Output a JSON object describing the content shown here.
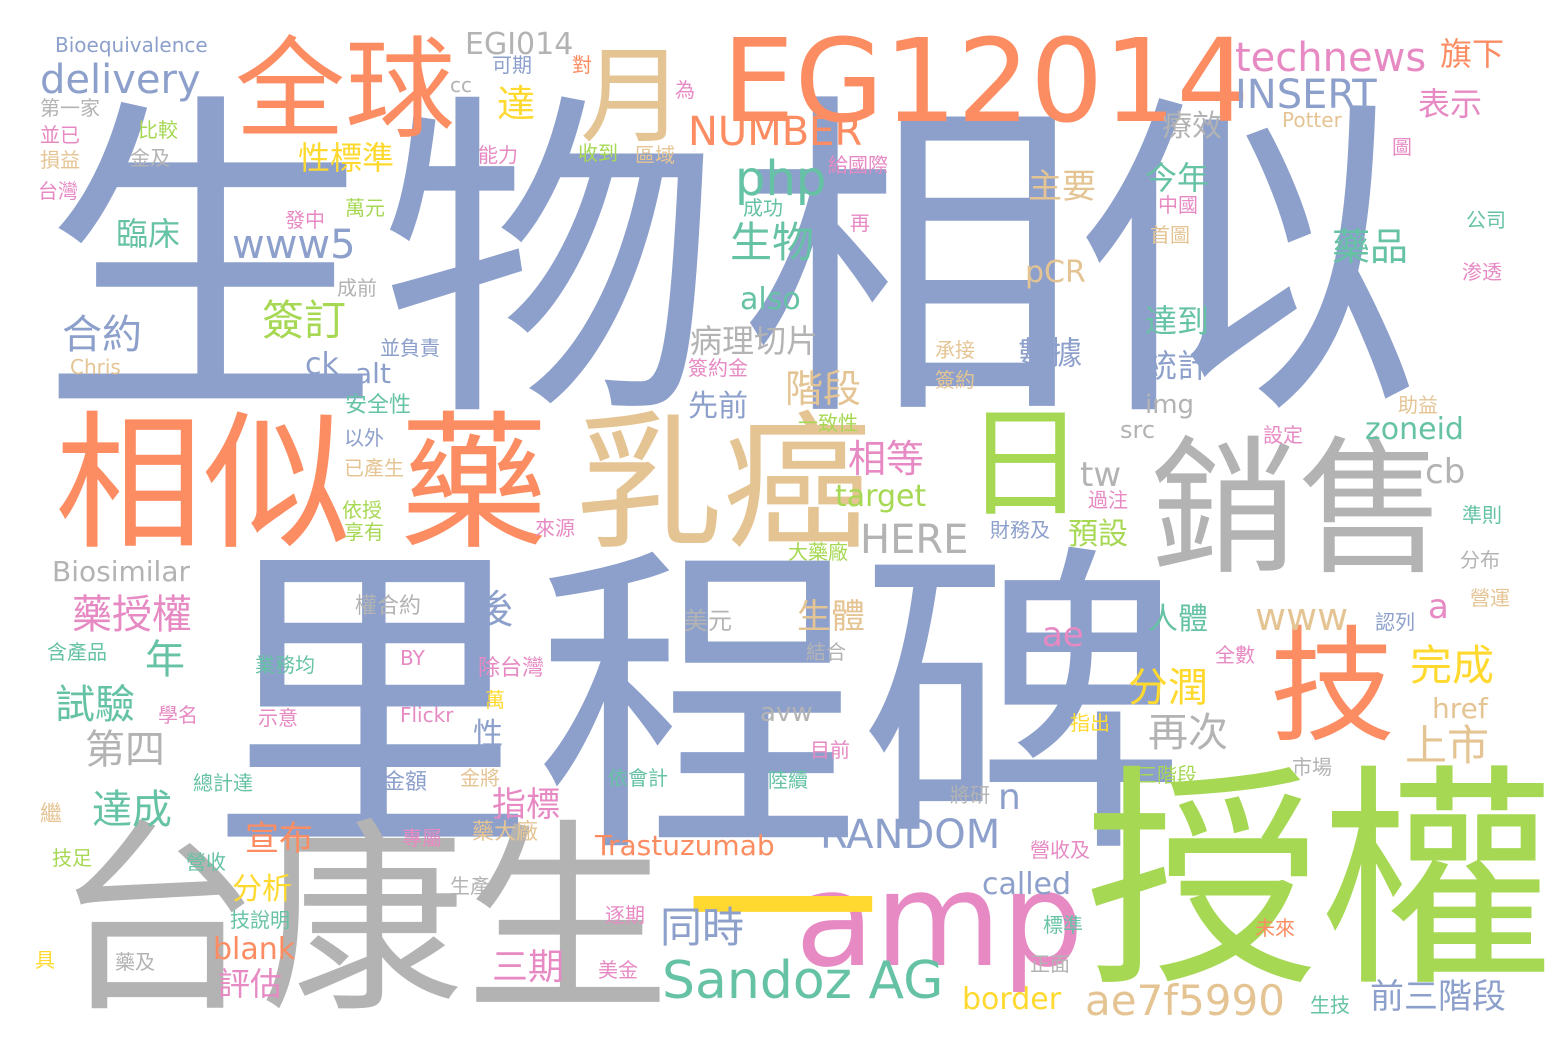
{
  "palette": {
    "blue": "#8DA0CB",
    "orange": "#FC8D62",
    "green": "#A6D854",
    "gray": "#B3B3B3",
    "pink": "#E78AC3",
    "tan": "#E5C494",
    "teal": "#66C2A5",
    "yellow": "#FFD92F"
  },
  "words": [
    "生物",
    "相似",
    "里程碑",
    "授權",
    "台康生",
    "相似",
    "藥",
    "乳癌",
    "銷售",
    "EG12014",
    "全球",
    "月",
    "日",
    "技",
    "amp",
    "一",
    "Sandoz AG",
    "technews",
    "INSERT",
    "NUMBER",
    "RANDOM",
    "delivery",
    "php",
    "www5",
    "生物",
    "合約",
    "簽訂",
    "藥授權",
    "試驗",
    "第四",
    "達成",
    "年",
    "後",
    "HERE",
    "tw",
    "cb",
    "www",
    "ae7f5990",
    "Trastuzumab",
    "Biosimilar",
    "Bioequivalence",
    "EGI014",
    "旗下",
    "表示",
    "藥品",
    "療效",
    "主要",
    "pCR",
    "數據",
    "達到",
    "統計",
    "今年",
    "中國",
    "公司",
    "zoneid",
    "src",
    "img",
    "上市",
    "完成",
    "分潤",
    "再次",
    "n",
    "指標",
    "宣布",
    "分析",
    "blank",
    "評估",
    "三期",
    "同時",
    "called",
    "border",
    "前三階段",
    "href",
    "a",
    "人體",
    "生體",
    "相等",
    "target",
    "also",
    "病理切片",
    "階段",
    "先前",
    "alt",
    "ck",
    "臨床",
    "性標準",
    "達",
    "ae",
    "avw",
    "性",
    "預設",
    "Chris",
    "Potter",
    "成前",
    "並負責",
    "安全性",
    "以外",
    "已產生",
    "依授",
    "享有",
    "來源",
    "大藥廠",
    "財務及",
    "認列",
    "圖",
    "首圖",
    "助益",
    "設定",
    "準則",
    "分布",
    "營運",
    "渗透",
    "全數",
    "結合",
    "美元",
    "權合約",
    "BY",
    "業務均",
    "除台灣",
    "萬",
    "學名",
    "示意",
    "Flickr",
    "目前",
    "依會計",
    "陸續",
    "指出",
    "市場",
    "三階段",
    "將研",
    "金額",
    "金將",
    "總計達",
    "營收",
    "技足",
    "繼",
    "含產品",
    "專屬",
    "藥大廠",
    "營收及",
    "生產",
    "逐期",
    "技說明",
    "美金",
    "標準",
    "未來",
    "生技",
    "正面",
    "藥及",
    "具",
    "可期",
    "對",
    "cc",
    "第一家",
    "並已",
    "比較",
    "金及",
    "損益",
    "台灣",
    "能力",
    "收到",
    "區域",
    "為",
    "給國際",
    "成功",
    "再",
    "萬元",
    "發中",
    "承接",
    "簽約金",
    "簽約",
    "一致性",
    "過注"
  ]
}
